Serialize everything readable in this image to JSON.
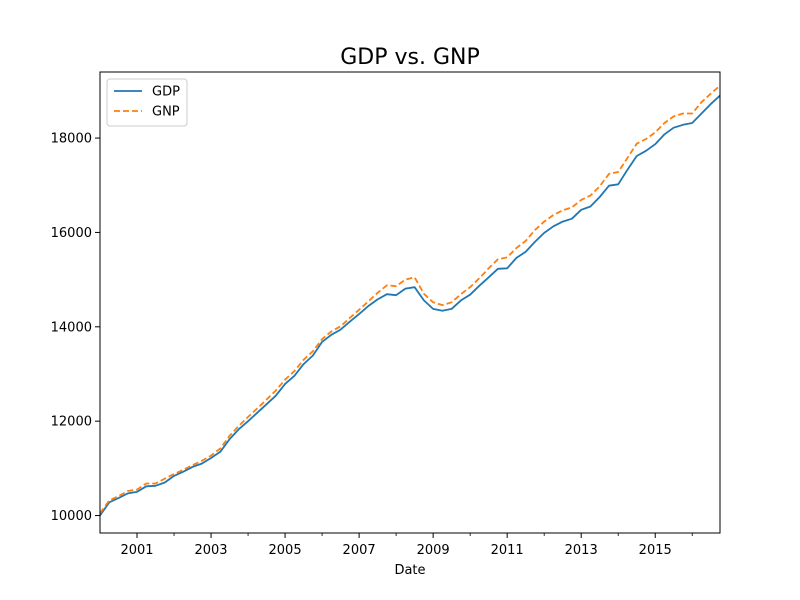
{
  "chart_data": {
    "type": "line",
    "title": "GDP vs. GNP",
    "xlabel": "Date",
    "ylabel": "",
    "x_range": [
      2000.0,
      2016.75
    ],
    "ylim": [
      9630,
      19400
    ],
    "grid": false,
    "legend_position": "top-left",
    "x_ticks": [
      2001,
      2003,
      2005,
      2007,
      2009,
      2011,
      2013,
      2015
    ],
    "x_tick_labels": [
      "2001",
      "2003",
      "2005",
      "2007",
      "2009",
      "2011",
      "2013",
      "2015"
    ],
    "y_ticks": [
      10000,
      12000,
      14000,
      16000,
      18000
    ],
    "y_tick_labels": [
      "10000",
      "12000",
      "14000",
      "16000",
      "18000"
    ],
    "series": [
      {
        "name": "GDP",
        "color": "#1f77b4",
        "dash": "solid",
        "points": [
          [
            2000.0,
            10000
          ],
          [
            2000.25,
            10280
          ],
          [
            2000.5,
            10370
          ],
          [
            2000.75,
            10470
          ],
          [
            2001.0,
            10500
          ],
          [
            2001.25,
            10620
          ],
          [
            2001.5,
            10630
          ],
          [
            2001.75,
            10700
          ],
          [
            2002.0,
            10840
          ],
          [
            2002.25,
            10930
          ],
          [
            2002.5,
            11030
          ],
          [
            2002.75,
            11100
          ],
          [
            2003.0,
            11220
          ],
          [
            2003.25,
            11350
          ],
          [
            2003.5,
            11620
          ],
          [
            2003.75,
            11830
          ],
          [
            2004.0,
            12000
          ],
          [
            2004.25,
            12180
          ],
          [
            2004.5,
            12360
          ],
          [
            2004.75,
            12540
          ],
          [
            2005.0,
            12790
          ],
          [
            2005.25,
            12960
          ],
          [
            2005.5,
            13210
          ],
          [
            2005.75,
            13390
          ],
          [
            2006.0,
            13680
          ],
          [
            2006.25,
            13830
          ],
          [
            2006.5,
            13940
          ],
          [
            2006.75,
            14110
          ],
          [
            2007.0,
            14270
          ],
          [
            2007.25,
            14440
          ],
          [
            2007.5,
            14580
          ],
          [
            2007.75,
            14690
          ],
          [
            2008.0,
            14670
          ],
          [
            2008.25,
            14810
          ],
          [
            2008.5,
            14840
          ],
          [
            2008.75,
            14560
          ],
          [
            2009.0,
            14380
          ],
          [
            2009.25,
            14340
          ],
          [
            2009.5,
            14380
          ],
          [
            2009.75,
            14560
          ],
          [
            2010.0,
            14680
          ],
          [
            2010.25,
            14870
          ],
          [
            2010.5,
            15050
          ],
          [
            2010.75,
            15230
          ],
          [
            2011.0,
            15240
          ],
          [
            2011.25,
            15460
          ],
          [
            2011.5,
            15590
          ],
          [
            2011.75,
            15800
          ],
          [
            2012.0,
            15990
          ],
          [
            2012.25,
            16130
          ],
          [
            2012.5,
            16230
          ],
          [
            2012.75,
            16290
          ],
          [
            2013.0,
            16480
          ],
          [
            2013.25,
            16550
          ],
          [
            2013.5,
            16750
          ],
          [
            2013.75,
            16990
          ],
          [
            2014.0,
            17020
          ],
          [
            2014.25,
            17330
          ],
          [
            2014.5,
            17620
          ],
          [
            2014.75,
            17730
          ],
          [
            2015.0,
            17870
          ],
          [
            2015.25,
            18080
          ],
          [
            2015.5,
            18220
          ],
          [
            2015.75,
            18280
          ],
          [
            2016.0,
            18320
          ],
          [
            2016.25,
            18520
          ],
          [
            2016.5,
            18720
          ],
          [
            2016.75,
            18900
          ]
        ]
      },
      {
        "name": "GNP",
        "color": "#ff7f0e",
        "dash": "dashed",
        "points": [
          [
            2000.0,
            10050
          ],
          [
            2000.25,
            10320
          ],
          [
            2000.5,
            10410
          ],
          [
            2000.75,
            10520
          ],
          [
            2001.0,
            10550
          ],
          [
            2001.25,
            10680
          ],
          [
            2001.5,
            10680
          ],
          [
            2001.75,
            10780
          ],
          [
            2002.0,
            10880
          ],
          [
            2002.25,
            10970
          ],
          [
            2002.5,
            11070
          ],
          [
            2002.75,
            11160
          ],
          [
            2003.0,
            11270
          ],
          [
            2003.25,
            11420
          ],
          [
            2003.5,
            11690
          ],
          [
            2003.75,
            11900
          ],
          [
            2004.0,
            12090
          ],
          [
            2004.25,
            12270
          ],
          [
            2004.5,
            12460
          ],
          [
            2004.75,
            12650
          ],
          [
            2005.0,
            12880
          ],
          [
            2005.25,
            13060
          ],
          [
            2005.5,
            13300
          ],
          [
            2005.75,
            13480
          ],
          [
            2006.0,
            13740
          ],
          [
            2006.25,
            13900
          ],
          [
            2006.5,
            14010
          ],
          [
            2006.75,
            14190
          ],
          [
            2007.0,
            14360
          ],
          [
            2007.25,
            14540
          ],
          [
            2007.5,
            14720
          ],
          [
            2007.75,
            14880
          ],
          [
            2008.0,
            14860
          ],
          [
            2008.25,
            15000
          ],
          [
            2008.5,
            15050
          ],
          [
            2008.75,
            14700
          ],
          [
            2009.0,
            14520
          ],
          [
            2009.25,
            14460
          ],
          [
            2009.5,
            14520
          ],
          [
            2009.75,
            14690
          ],
          [
            2010.0,
            14840
          ],
          [
            2010.25,
            15030
          ],
          [
            2010.5,
            15240
          ],
          [
            2010.75,
            15430
          ],
          [
            2011.0,
            15470
          ],
          [
            2011.25,
            15670
          ],
          [
            2011.5,
            15820
          ],
          [
            2011.75,
            16050
          ],
          [
            2012.0,
            16230
          ],
          [
            2012.25,
            16370
          ],
          [
            2012.5,
            16470
          ],
          [
            2012.75,
            16530
          ],
          [
            2013.0,
            16690
          ],
          [
            2013.25,
            16780
          ],
          [
            2013.5,
            16980
          ],
          [
            2013.75,
            17240
          ],
          [
            2014.0,
            17280
          ],
          [
            2014.25,
            17580
          ],
          [
            2014.5,
            17880
          ],
          [
            2014.75,
            17980
          ],
          [
            2015.0,
            18120
          ],
          [
            2015.25,
            18320
          ],
          [
            2015.5,
            18460
          ],
          [
            2015.75,
            18520
          ],
          [
            2016.0,
            18520
          ],
          [
            2016.25,
            18760
          ],
          [
            2016.5,
            18940
          ],
          [
            2016.75,
            19110
          ]
        ]
      }
    ]
  }
}
